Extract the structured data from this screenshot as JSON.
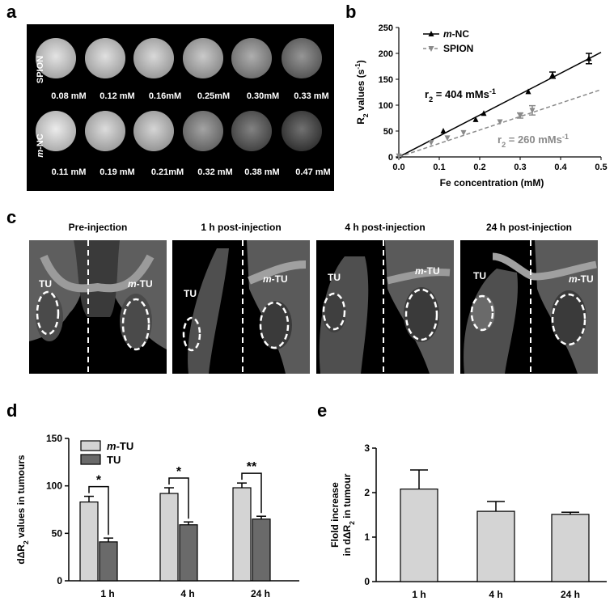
{
  "panels": {
    "a": "a",
    "b": "b",
    "c": "c",
    "d": "d",
    "e": "e"
  },
  "panel_a": {
    "row1_label": "SPION",
    "row2_label_italic": "m",
    "row2_label_rest": "-NC",
    "row1_conc": [
      "0.08 mM",
      "0.12 mM",
      "0.16mM",
      "0.25mM",
      "0.30mM",
      "0.33 mM"
    ],
    "row2_conc": [
      "0.11 mM",
      "0.19 mM",
      "0.21mM",
      "0.32 mM",
      "0.38 mM",
      "0.47 mM"
    ],
    "row1_gray": [
      0.86,
      0.84,
      0.8,
      0.72,
      0.58,
      0.45
    ],
    "row2_gray": [
      0.9,
      0.82,
      0.78,
      0.52,
      0.35,
      0.26
    ]
  },
  "panel_c": {
    "titles": [
      "Pre-injection",
      "1 h post-injection",
      "4 h post-injection",
      "24 h post-injection"
    ],
    "tu_label": "TU",
    "mtu_italic": "m",
    "mtu_rest": "-TU"
  },
  "chart_data": [
    {
      "id": "b",
      "type": "scatter",
      "xlabel": "Fe concentration (mM)",
      "ylabel_parts": [
        "R",
        "2",
        " values (s",
        "-1",
        ")"
      ],
      "xlim": [
        0.0,
        0.5
      ],
      "ylim": [
        0,
        250
      ],
      "xticks": [
        "0.0",
        "0.1",
        "0.2",
        "0.3",
        "0.4",
        "0.5"
      ],
      "yticks": [
        "0",
        "50",
        "100",
        "150",
        "200",
        "250"
      ],
      "series": [
        {
          "name_italic": "m",
          "name_rest": "-NC",
          "color": "#000000",
          "marker": "triangle-up",
          "x": [
            0,
            0.11,
            0.19,
            0.21,
            0.32,
            0.38,
            0.47
          ],
          "y": [
            2,
            50,
            72,
            84,
            126,
            158,
            190
          ],
          "err": [
            0,
            0,
            0,
            0,
            0,
            6,
            10
          ],
          "fit_slope": 404,
          "fit_label_parts": [
            "r",
            "2",
            " = 404 mMs",
            "-1"
          ]
        },
        {
          "name_italic": "",
          "name_rest": "SPION",
          "color": "#8a8a8a",
          "marker": "triangle-down",
          "x": [
            0,
            0.08,
            0.12,
            0.16,
            0.25,
            0.3,
            0.33
          ],
          "y": [
            2,
            28,
            37,
            47,
            68,
            80,
            90
          ],
          "err": [
            0,
            0,
            0,
            0,
            0,
            5,
            9
          ],
          "fit_slope": 260,
          "fit_label_parts": [
            "r",
            "2",
            " = 260 mMs",
            "-1"
          ]
        }
      ]
    },
    {
      "id": "d",
      "type": "bar",
      "categories": [
        "1 h",
        "4 h",
        "24 h"
      ],
      "ylabel_parts": [
        "d",
        "Δ",
        "R",
        "2",
        " values in tumours"
      ],
      "ylim": [
        0,
        150
      ],
      "yticks": [
        "0",
        "50",
        "100",
        "150"
      ],
      "series": [
        {
          "name_italic": "m",
          "name_rest": "-TU",
          "color": "#d4d4d4",
          "values": [
            83,
            92,
            98
          ],
          "err": [
            6,
            6,
            5
          ]
        },
        {
          "name_italic": "",
          "name_rest": "TU",
          "color": "#6a6a6a",
          "values": [
            41,
            59,
            65
          ],
          "err": [
            4,
            3,
            3
          ]
        }
      ],
      "significance": [
        "*",
        "*",
        "**"
      ]
    },
    {
      "id": "e",
      "type": "bar",
      "categories": [
        "1 h",
        "4 h",
        "24 h"
      ],
      "ylabel_line1": "Flold increase",
      "ylabel_line2_parts": [
        "in d",
        "Δ",
        "R",
        "2",
        " in tumour"
      ],
      "ylim": [
        0,
        3
      ],
      "yticks": [
        "0",
        "1",
        "2",
        "3"
      ],
      "series": [
        {
          "name": "",
          "color": "#d4d4d4",
          "values": [
            2.08,
            1.58,
            1.51
          ],
          "err": [
            0.43,
            0.22,
            0.05
          ]
        }
      ]
    }
  ]
}
